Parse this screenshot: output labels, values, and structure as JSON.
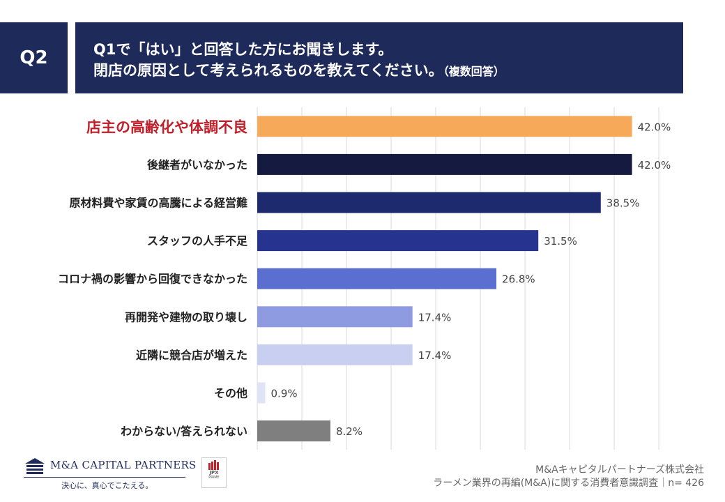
{
  "header": {
    "badge": "Q2",
    "line1": "Q1で「はい」と回答した方にお聞きします。",
    "line2": "閉店の原因として考えられるものを教えてください。",
    "note": "（複数回答）"
  },
  "chart_data": {
    "type": "bar",
    "orientation": "horizontal",
    "categories": [
      "店主の高齢化や体調不良",
      "後継者がいなかった",
      "原材料費や家賃の高騰による経営難",
      "スタッフの人手不足",
      "コロナ禍の影響から回復できなかった",
      "再開発や建物の取り壊し",
      "近隣に競合店が増えた",
      "その他",
      "わからない/答えられない"
    ],
    "values": [
      42.0,
      42.0,
      38.5,
      31.5,
      26.8,
      17.4,
      17.4,
      0.9,
      8.2
    ],
    "value_labels": [
      "42.0%",
      "42.0%",
      "38.5%",
      "31.5%",
      "26.8%",
      "17.4%",
      "17.4%",
      "0.9%",
      "8.2%"
    ],
    "bar_colors": [
      "#f7a95a",
      "#141a40",
      "#1e2a6e",
      "#26348f",
      "#5a6fd0",
      "#8f9be0",
      "#c9cff0",
      "#dfe3f5",
      "#7f7f7f"
    ],
    "highlight_category_color": "#c0202a",
    "xlim": [
      0,
      45
    ],
    "gridline_step": 5,
    "grid": true
  },
  "footer": {
    "company_logo": "M&A CAPITAL PARTNERS",
    "tagline": "決心に、真心でこたえる。",
    "jpx_label": "JPX",
    "jpx_sub": "PRIME",
    "source_line1": "M&Aキャピタルパートナーズ株式会社",
    "source_line2": "ラーメン業界の再編(M&A)に関する消費者意識調査｜n= 426"
  },
  "colors": {
    "navy": "#1e2a5a"
  }
}
